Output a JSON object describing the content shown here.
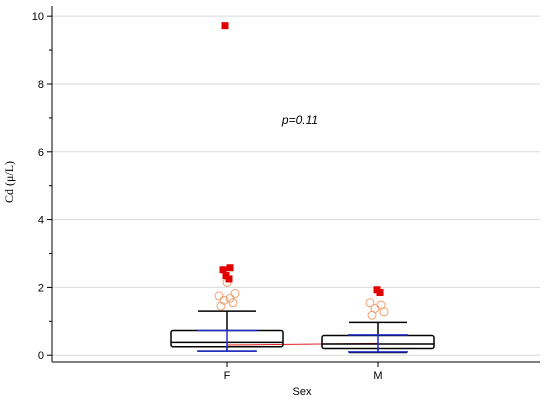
{
  "chart_data": {
    "type": "box",
    "xlabel": "Sex",
    "ylabel": "Cd (μ/L)",
    "ylim": [
      -0.2,
      10.3
    ],
    "yticks": [
      0,
      2,
      4,
      6,
      8,
      10
    ],
    "grid": true,
    "annotation": "p=0.11",
    "categories": [
      "F",
      "M"
    ],
    "boxes": [
      {
        "category": "F",
        "whisker_low": 0.12,
        "q1": 0.25,
        "median": 0.38,
        "q3": 0.73,
        "whisker_high": 1.3,
        "mean": 0.3,
        "ci": [
          0.12,
          0.73
        ],
        "outliers": [
          1.45,
          1.55,
          1.62,
          1.68,
          1.75,
          1.82,
          2.15
        ],
        "far_outliers": [
          2.25,
          2.35,
          2.52,
          2.58,
          9.72
        ]
      },
      {
        "category": "M",
        "whisker_low": 0.08,
        "q1": 0.2,
        "median": 0.33,
        "q3": 0.58,
        "whisker_high": 0.97,
        "mean": 0.35,
        "ci": [
          0.1,
          0.6
        ],
        "outliers": [
          1.18,
          1.28,
          1.38,
          1.48,
          1.55
        ],
        "far_outliers": [
          1.85,
          1.93
        ]
      }
    ],
    "colors": {
      "box": "#000000",
      "ci": "#1f2fd0",
      "mean_line": "#e02020",
      "outlier": "#f0a070",
      "far_outlier": "#e00000",
      "grid": "#d9d9d9"
    }
  }
}
